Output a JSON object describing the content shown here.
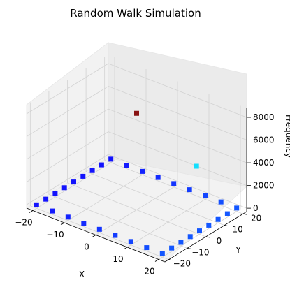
{
  "chart_data": {
    "type": "scatter3d",
    "title": "Random Walk Simulation",
    "xlabel": "X",
    "ylabel": "Y",
    "zlabel": "Frequency",
    "xlim": [
      -22,
      22
    ],
    "ylim": [
      -22,
      22
    ],
    "zlim": [
      -300,
      8800
    ],
    "xticks": [
      -20,
      -10,
      0,
      10,
      20
    ],
    "yticks": [
      -20,
      -10,
      0,
      10,
      20
    ],
    "zticks": [
      0,
      2000,
      4000,
      6000,
      8000
    ],
    "xtick_labels": [
      "−20",
      "−10",
      "0",
      "10",
      "20"
    ],
    "ytick_labels": [
      "−20",
      "−10",
      "0",
      "10",
      "20"
    ],
    "ztick_labels": [
      "0",
      "2000",
      "4000",
      "6000",
      "8000"
    ],
    "grid": true,
    "colormap": "jet",
    "description_series": [
      {
        "name": "",
        "points": [
          {
            "x": 0,
            "y": 0,
            "z": 8200
          },
          {
            "x": 9,
            "y": 17,
            "z": 2800
          },
          {
            "x": -20,
            "y": -20,
            "z": 1
          },
          {
            "x": -15,
            "y": -20,
            "z": 1
          },
          {
            "x": -10,
            "y": -20,
            "z": 1
          },
          {
            "x": -5,
            "y": -20,
            "z": 1
          },
          {
            "x": 0,
            "y": -20,
            "z": 1
          },
          {
            "x": 5,
            "y": -20,
            "z": 1
          },
          {
            "x": 10,
            "y": -20,
            "z": 1
          },
          {
            "x": 15,
            "y": -20,
            "z": 1
          },
          {
            "x": 20,
            "y": -20,
            "z": 1
          },
          {
            "x": 20,
            "y": -15,
            "z": 1
          },
          {
            "x": 20,
            "y": -10,
            "z": 1
          },
          {
            "x": 20,
            "y": -5,
            "z": 1
          },
          {
            "x": 20,
            "y": 0,
            "z": 1
          },
          {
            "x": 20,
            "y": 5,
            "z": 1
          },
          {
            "x": 20,
            "y": 10,
            "z": 1
          },
          {
            "x": 20,
            "y": 15,
            "z": 1
          },
          {
            "x": 20,
            "y": 20,
            "z": 1
          },
          {
            "x": 15,
            "y": 20,
            "z": 1
          },
          {
            "x": 10,
            "y": 20,
            "z": 1
          },
          {
            "x": 5,
            "y": 20,
            "z": 1
          },
          {
            "x": 0,
            "y": 20,
            "z": 1
          },
          {
            "x": -5,
            "y": 20,
            "z": 1
          },
          {
            "x": -10,
            "y": 20,
            "z": 1
          },
          {
            "x": -15,
            "y": 20,
            "z": 1
          },
          {
            "x": -20,
            "y": 20,
            "z": 1
          },
          {
            "x": -20,
            "y": 15,
            "z": 1
          },
          {
            "x": -20,
            "y": 10,
            "z": 1
          },
          {
            "x": -20,
            "y": 5,
            "z": 1
          },
          {
            "x": -20,
            "y": 0,
            "z": 1
          },
          {
            "x": -20,
            "y": -5,
            "z": 1
          },
          {
            "x": -20,
            "y": -10,
            "z": 1
          },
          {
            "x": -20,
            "y": -15,
            "z": 1
          }
        ]
      }
    ]
  }
}
